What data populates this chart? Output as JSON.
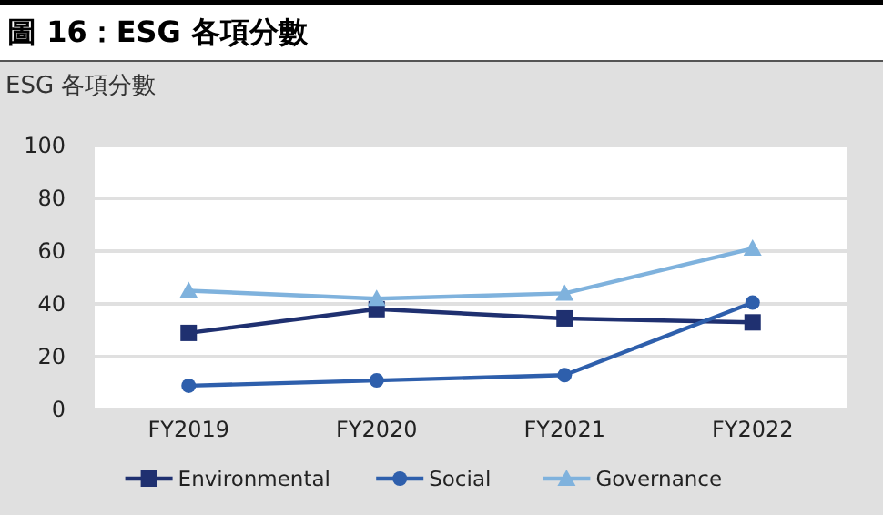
{
  "chart_data": {
    "type": "line",
    "title": "圖 16：ESG 各項分數",
    "subtitle": "ESG 各項分數",
    "categories": [
      "FY2019",
      "FY2020",
      "FY2021",
      "FY2022"
    ],
    "series": [
      {
        "name": "Environmental",
        "color": "#1f3070",
        "marker": "square",
        "values": [
          29,
          38,
          34.5,
          33
        ]
      },
      {
        "name": "Social",
        "color": "#2e5fac",
        "marker": "circle",
        "values": [
          9,
          11,
          13,
          40.5
        ]
      },
      {
        "name": "Governance",
        "color": "#7fb2dd",
        "marker": "triangle",
        "values": [
          45,
          42,
          44,
          61
        ]
      }
    ],
    "ylim": [
      0,
      100
    ],
    "yticks": [
      0,
      20,
      40,
      60,
      80,
      100
    ],
    "grid": "y",
    "legend": "bottom"
  }
}
